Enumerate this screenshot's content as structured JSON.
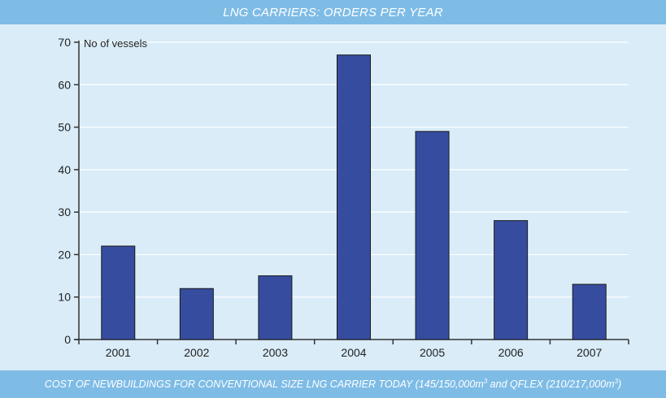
{
  "header": {
    "title": "LNG CARRIERS: ORDERS PER YEAR"
  },
  "footer": {
    "text_main": "COST OF NEWBUILDINGS FOR CONVENTIONAL SIZE LNG CARRIER TODAY (145/150,000m",
    "sup1": "3",
    "text_mid": " and QFLEX (210/217,000m",
    "sup2": "3",
    "text_end": ")"
  },
  "chart_data": {
    "type": "bar",
    "title": "LNG CARRIERS: ORDERS PER YEAR",
    "xlabel": "",
    "ylabel": "No of vessels",
    "categories": [
      "2001",
      "2002",
      "2003",
      "2004",
      "2005",
      "2006",
      "2007"
    ],
    "values": [
      22,
      12,
      15,
      67,
      49,
      28,
      13
    ],
    "ylim": [
      0,
      70
    ],
    "yticks": [
      0,
      10,
      20,
      30,
      40,
      50,
      60,
      70
    ],
    "grid": true,
    "colors": {
      "bar": "#364d9f",
      "bar_stroke": "#1a1a1a",
      "grid": "#ffffff",
      "axis": "#333333"
    }
  }
}
